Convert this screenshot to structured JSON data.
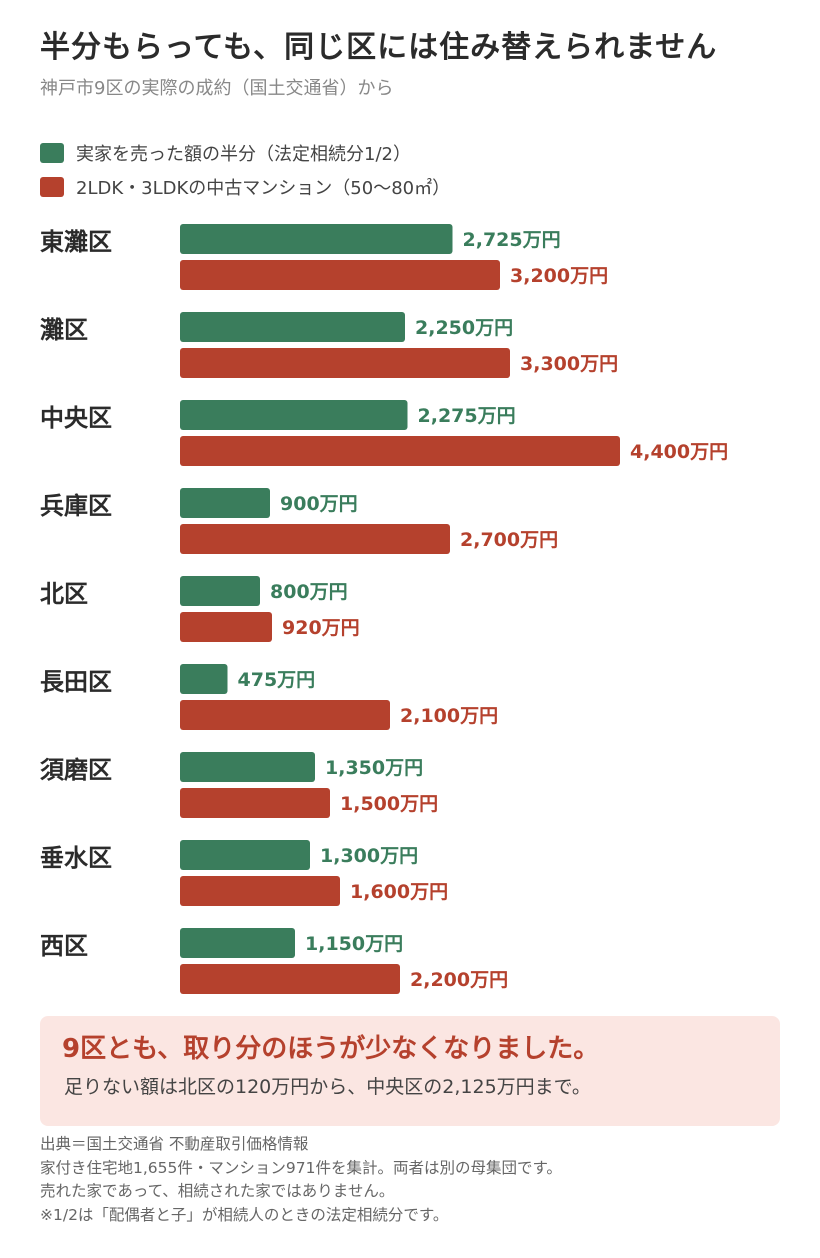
{
  "title": "半分もらっても、同じ区には住み替えられません",
  "subtitle": "神戸市9区の実際の成約（国土交通省）から",
  "legend": [
    {
      "label": "実家を売った額の半分（法定相続分1/2）",
      "color": "#3a7d5c"
    },
    {
      "label": "2LDK・3LDKの中古マンション（50〜80㎡）",
      "color": "#b5412d"
    }
  ],
  "chart_data": {
    "type": "bar",
    "orientation": "horizontal",
    "unit": "万円",
    "categories": [
      "東灘区",
      "灘区",
      "中央区",
      "兵庫区",
      "北区",
      "長田区",
      "須磨区",
      "垂水区",
      "西区"
    ],
    "series": [
      {
        "name": "実家を売った額の半分（法定相続分1/2）",
        "color": "#3a7d5c",
        "values": [
          2725,
          2250,
          2275,
          900,
          800,
          475,
          1350,
          1300,
          1150
        ],
        "labels": [
          "2,725万円",
          "2,250万円",
          "2,275万円",
          "900万円",
          "800万円",
          "475万円",
          "1,350万円",
          "1,300万円",
          "1,150万円"
        ]
      },
      {
        "name": "2LDK・3LDKの中古マンション（50〜80㎡）",
        "color": "#b5412d",
        "values": [
          3200,
          3300,
          4400,
          2700,
          920,
          2100,
          1500,
          1600,
          2200
        ],
        "labels": [
          "3,200万円",
          "3,300万円",
          "4,400万円",
          "2,700万円",
          "920万円",
          "2,100万円",
          "1,500万円",
          "1,600万円",
          "2,200万円"
        ]
      }
    ],
    "xlim": [
      0,
      4400
    ],
    "grid": false,
    "legend_position": "top-left"
  },
  "callout": {
    "headline": "9区とも、取り分のほうが少なくなりました。",
    "body": "足りない額は北区の120万円から、中央区の2,125万円まで。"
  },
  "notes": [
    "出典＝国土交通省 不動産取引価格情報",
    "家付き住宅地1,655件・マンション971件を集計。両者は別の母集団です。",
    "売れた家であって、相続された家ではありません。",
    "※1/2は「配偶者と子」が相続人のときの法定相続分です。"
  ]
}
